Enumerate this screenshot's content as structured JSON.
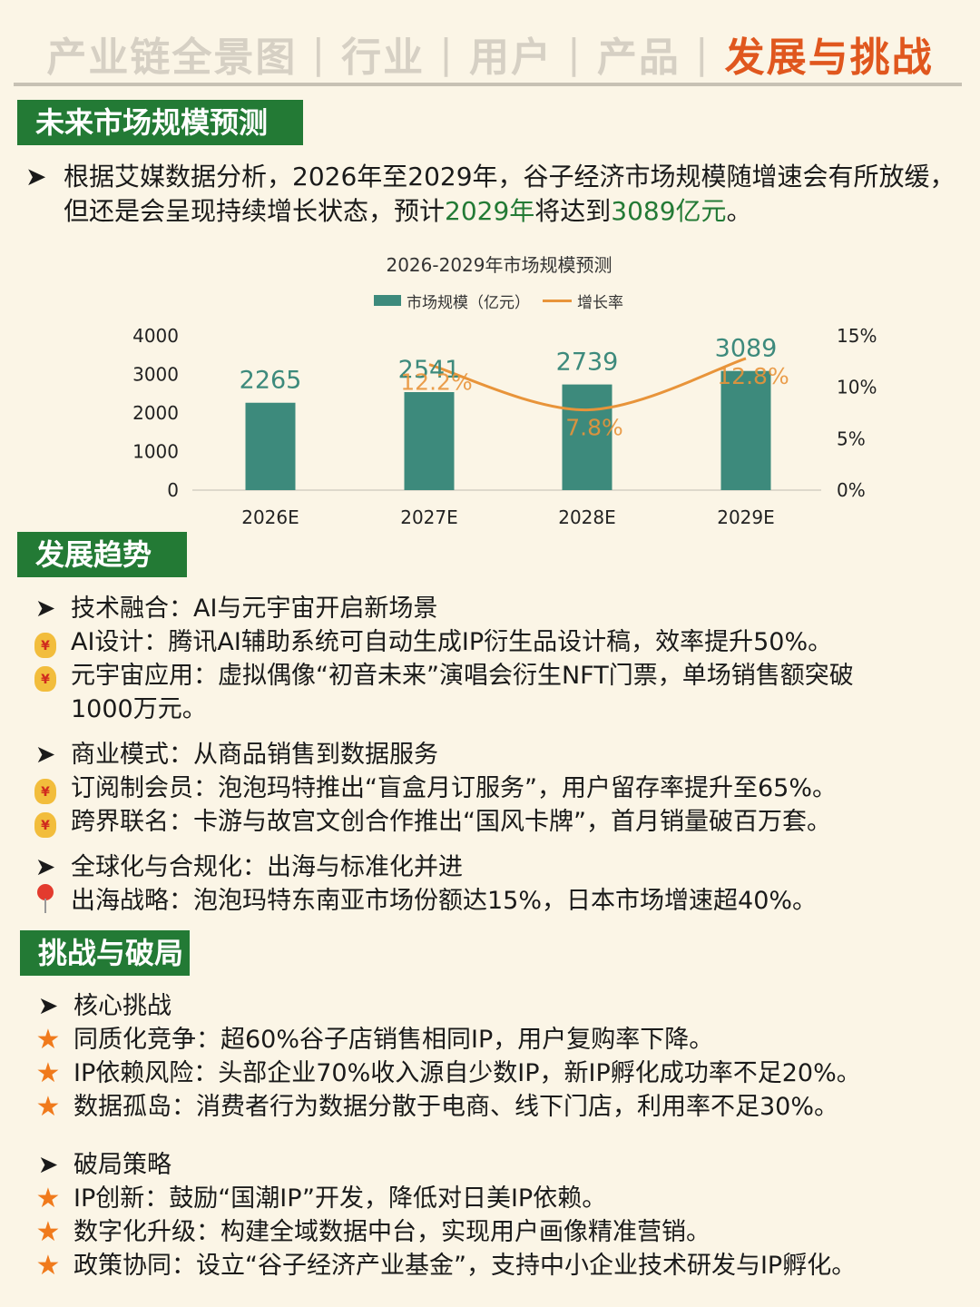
{
  "nav": {
    "tabs": [
      "产业链全景图",
      "行业",
      "用户",
      "产品",
      "发展与挑战"
    ],
    "separator": "|"
  },
  "sections": {
    "forecast": {
      "title": "未来市场规模预测",
      "intro_part1": "根据艾媒数据分析，2026年至2029年，谷子经济市场规模随增速会有所放",
      "intro_part2": "缓，但还是会呈现持续增长状态，预计",
      "intro_hl1": "2029年",
      "intro_part3": "将达到",
      "intro_hl2": "3089亿元",
      "intro_part4": "。"
    },
    "trends": {
      "title": "发展趋势",
      "l1": "技术融合：AI与元宇宙开启新场景",
      "l2": "AI设计：腾讯AI辅助系统可自动生成IP衍生品设计稿，效率提升50%。",
      "l3": "元宇宙应用：虚拟偶像“初音未来”演唱会衍生NFT门票，单场销售额突破",
      "l4": "1000万元。",
      "l5": "商业模式：从商品销售到数据服务",
      "l6": "订阅制会员：泡泡玛特推出“盲盒月订服务”，用户留存率提升至65%。",
      "l7": "跨界联名：卡游与故宫文创合作推出“国风卡牌”，首月销量破百万套。",
      "l8": "全球化与合规化：出海与标准化并进",
      "l9": "出海战略：泡泡玛特东南亚市场份额达15%，日本市场增速超40%。"
    },
    "challenges": {
      "title": "挑战与破局",
      "l1": "核心挑战",
      "l2": "同质化竞争：超60%谷子店销售相同IP，用户复购率下降。",
      "l3": "IP依赖风险：头部企业70%收入源自少数IP，新IP孵化成功率不足20%。",
      "l4": "数据孤岛：消费者行为数据分散于电商、线下门店，利用率不足30%。",
      "l5": "破局策略",
      "l6": "IP创新：鼓励“国潮IP”开发，降低对日美IP依赖。",
      "l7": "数字化升级：构建全域数据中台，实现用户画像精准营销。",
      "l8": "政策协同：设立“谷子经济产业基金”，支持中小企业技术研发与IP孵化。"
    }
  },
  "icons": {
    "arrow": "➤",
    "moneybag": "moneybag-icon",
    "pin": "pin-icon",
    "star": "★",
    "moneybag_glyph": "¥"
  },
  "colors": {
    "accent": "#237a35",
    "bar": "#3d8a7c",
    "line": "#e8943a",
    "nav_active": "#e0571e",
    "nav_inactive": "#d6d0c4",
    "background": "#fbf5e6"
  },
  "chart_data": {
    "type": "bar",
    "title": "2026-2029年市场规模预测",
    "categories": [
      "2026E",
      "2027E",
      "2028E",
      "2029E"
    ],
    "series": [
      {
        "name": "市场规模（亿元）",
        "type": "bar",
        "axis": "left",
        "values": [
          2265,
          2541,
          2739,
          3089
        ],
        "labels": [
          "2265",
          "2541",
          "2739",
          "3089"
        ]
      },
      {
        "name": "增长率",
        "type": "line",
        "axis": "right",
        "smooth": true,
        "values": [
          null,
          12.2,
          7.8,
          12.8
        ],
        "labels": [
          "",
          "12.2%",
          "7.8%",
          "12.8%"
        ]
      }
    ],
    "y_left": {
      "ylim": [
        0,
        4000
      ],
      "ticks": [
        "0",
        "1000",
        "2000",
        "3000",
        "4000"
      ]
    },
    "y_right": {
      "ylim": [
        0,
        15
      ],
      "ticks": [
        "0%",
        "5%",
        "10%",
        "15%"
      ]
    },
    "legend": "top-center",
    "grid": false
  }
}
